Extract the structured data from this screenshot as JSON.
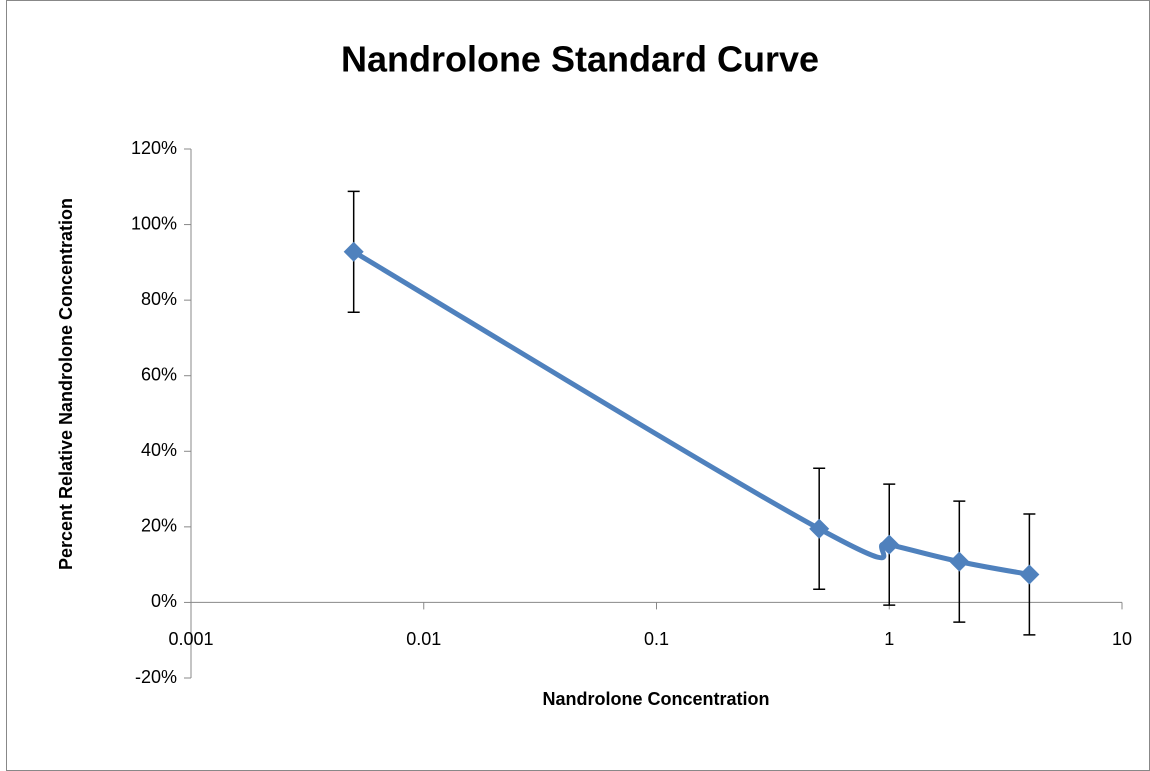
{
  "chart_data": {
    "type": "scatter",
    "title": "Nandrolone Standard Curve",
    "x_label": "Nandrolone Concentration",
    "y_label": "Percent Relative Nandrolone Concentration",
    "x_scale": "log",
    "xlim": [
      0.001,
      10
    ],
    "xticks": [
      0.001,
      0.01,
      0.1,
      1,
      10
    ],
    "ylim": [
      -20,
      120
    ],
    "yticks": [
      {
        "value": -20,
        "label": "-20%"
      },
      {
        "value": 0,
        "label": "0%"
      },
      {
        "value": 20,
        "label": "20%"
      },
      {
        "value": 40,
        "label": "40%"
      },
      {
        "value": 60,
        "label": "60%"
      },
      {
        "value": 80,
        "label": "80%"
      },
      {
        "value": 100,
        "label": "100%"
      },
      {
        "value": 120,
        "label": "120%"
      }
    ],
    "series": [
      {
        "color": "#4f81bd",
        "x": [
          0.005,
          0.5,
          1,
          2,
          4
        ],
        "values": [
          92.8,
          19.5,
          15.3,
          10.8,
          7.4
        ],
        "errors": [
          16,
          16,
          16,
          16,
          16
        ]
      }
    ]
  }
}
